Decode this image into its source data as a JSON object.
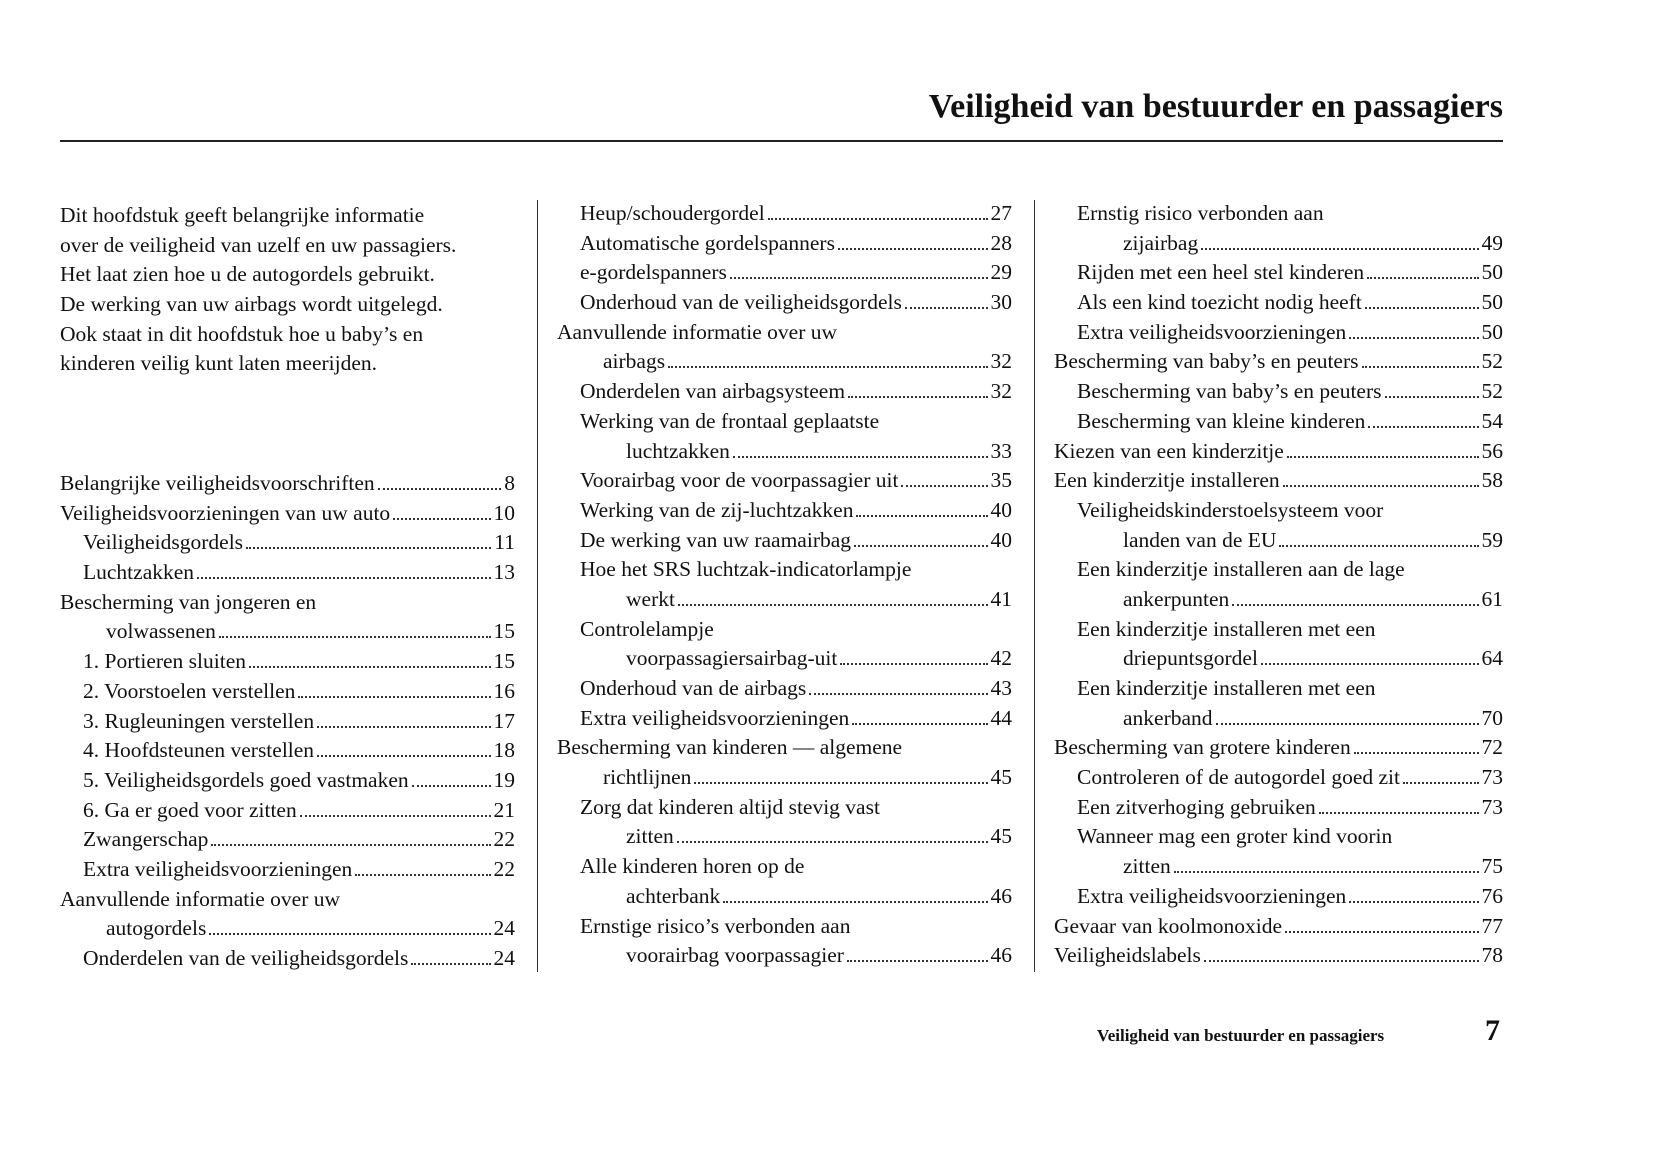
{
  "header": {
    "title": "Veiligheid van bestuurder en passagiers"
  },
  "intro": {
    "lines": [
      "Dit hoofdstuk geeft belangrijke informatie",
      "over de veiligheid van uzelf en uw passagiers.",
      "Het laat zien hoe u de autogordels gebruikt.",
      "De werking van uw airbags wordt uitgelegd.",
      "Ook staat in dit hoofdstuk hoe u baby’s en",
      "kinderen veilig kunt laten meerijden."
    ]
  },
  "columns": [
    {
      "sections": [
        {
          "title": {
            "lines": [
              "Belangrijke veiligheidsvoorschriften"
            ],
            "page": 8
          }
        },
        {
          "title": {
            "lines": [
              "Veiligheidsvoorzieningen van uw auto"
            ],
            "page": 10
          },
          "items": [
            {
              "lines": [
                "Veiligheidsgordels"
              ],
              "page": 11
            },
            {
              "lines": [
                "Luchtzakken"
              ],
              "page": 13
            }
          ]
        },
        {
          "title": {
            "lines": [
              "Bescherming van jongeren en",
              "volwassenen"
            ],
            "page": 15
          },
          "items": [
            {
              "lines": [
                "1. Portieren sluiten"
              ],
              "page": 15
            },
            {
              "lines": [
                "2. Voorstoelen verstellen"
              ],
              "page": 16
            },
            {
              "lines": [
                "3. Rugleuningen verstellen"
              ],
              "page": 17
            },
            {
              "lines": [
                "4. Hoofdsteunen verstellen"
              ],
              "page": 18
            },
            {
              "lines": [
                "5. Veiligheidsgordels goed vastmaken"
              ],
              "page": 19
            },
            {
              "lines": [
                "6. Ga er goed voor zitten"
              ],
              "page": 21
            },
            {
              "lines": [
                "Zwangerschap"
              ],
              "page": 22
            },
            {
              "lines": [
                "Extra veiligheidsvoorzieningen"
              ],
              "page": 22
            }
          ]
        },
        {
          "title": {
            "lines": [
              "Aanvullende informatie over uw",
              "autogordels"
            ],
            "page": 24
          },
          "items": [
            {
              "lines": [
                "Onderdelen van de veiligheidsgordels"
              ],
              "page": 24
            }
          ]
        }
      ]
    },
    {
      "sections": [
        {
          "items": [
            {
              "lines": [
                "Heup/schoudergordel"
              ],
              "page": 27
            },
            {
              "lines": [
                "Automatische gordelspanners"
              ],
              "page": 28
            },
            {
              "lines": [
                "e-gordelspanners"
              ],
              "page": 29
            },
            {
              "lines": [
                "Onderhoud van de veiligheidsgordels"
              ],
              "page": 30
            }
          ]
        },
        {
          "title": {
            "lines": [
              "Aanvullende informatie over uw",
              "airbags"
            ],
            "page": 32
          },
          "items": [
            {
              "lines": [
                "Onderdelen van airbagsysteem"
              ],
              "page": 32
            },
            {
              "lines": [
                "Werking van de frontaal geplaatste",
                "luchtzakken"
              ],
              "page": 33
            },
            {
              "lines": [
                "Voorairbag voor de voorpassagier uit"
              ],
              "page": 35
            },
            {
              "lines": [
                "Werking van de zij-luchtzakken"
              ],
              "page": 40
            },
            {
              "lines": [
                "De werking van uw raamairbag"
              ],
              "page": 40
            },
            {
              "lines": [
                "Hoe het SRS luchtzak-indicatorlampje",
                "werkt"
              ],
              "page": 41
            },
            {
              "lines": [
                "Controlelampje",
                "voorpassagiersairbag-uit"
              ],
              "page": 42
            },
            {
              "lines": [
                "Onderhoud van de airbags"
              ],
              "page": 43
            },
            {
              "lines": [
                "Extra veiligheidsvoorzieningen"
              ],
              "page": 44
            }
          ]
        },
        {
          "title": {
            "lines": [
              "Bescherming van kinderen — algemene",
              "richtlijnen"
            ],
            "page": 45
          },
          "items": [
            {
              "lines": [
                "Zorg dat kinderen altijd stevig vast",
                "zitten"
              ],
              "page": 45
            },
            {
              "lines": [
                "Alle kinderen horen op de",
                "achterbank"
              ],
              "page": 46
            },
            {
              "lines": [
                "Ernstige risico’s verbonden aan",
                "voorairbag voorpassagier"
              ],
              "page": 46
            }
          ]
        }
      ]
    },
    {
      "sections": [
        {
          "items": [
            {
              "lines": [
                "Ernstig risico verbonden aan",
                "zijairbag"
              ],
              "page": 49
            },
            {
              "lines": [
                "Rijden met een heel stel kinderen"
              ],
              "page": 50
            },
            {
              "lines": [
                "Als een kind toezicht nodig heeft"
              ],
              "page": 50
            },
            {
              "lines": [
                "Extra veiligheidsvoorzieningen"
              ],
              "page": 50
            }
          ]
        },
        {
          "title": {
            "lines": [
              "Bescherming van baby’s en peuters"
            ],
            "page": 52
          },
          "items": [
            {
              "lines": [
                "Bescherming van baby’s en peuters"
              ],
              "page": 52
            },
            {
              "lines": [
                "Bescherming van kleine kinderen"
              ],
              "page": 54
            }
          ]
        },
        {
          "title": {
            "lines": [
              "Kiezen van een kinderzitje"
            ],
            "page": 56
          }
        },
        {
          "title": {
            "lines": [
              "Een kinderzitje installeren"
            ],
            "page": 58
          },
          "items": [
            {
              "lines": [
                "Veiligheidskinderstoelsysteem voor",
                "landen van de EU"
              ],
              "page": 59
            },
            {
              "lines": [
                "Een kinderzitje installeren aan de lage",
                "ankerpunten"
              ],
              "page": 61
            },
            {
              "lines": [
                "Een kinderzitje installeren met een",
                "driepuntsgordel"
              ],
              "page": 64
            },
            {
              "lines": [
                "Een kinderzitje installeren met een",
                "ankerband"
              ],
              "page": 70
            }
          ]
        },
        {
          "title": {
            "lines": [
              "Bescherming van grotere kinderen"
            ],
            "page": 72
          },
          "items": [
            {
              "lines": [
                "Controleren of de autogordel goed zit"
              ],
              "page": 73
            },
            {
              "lines": [
                "Een zitverhoging gebruiken"
              ],
              "page": 73
            },
            {
              "lines": [
                "Wanneer mag een groter kind voorin",
                "zitten"
              ],
              "page": 75
            },
            {
              "lines": [
                "Extra veiligheidsvoorzieningen"
              ],
              "page": 76
            }
          ]
        },
        {
          "title": {
            "lines": [
              "Gevaar van koolmonoxide"
            ],
            "page": 77
          }
        },
        {
          "title": {
            "lines": [
              "Veiligheidslabels"
            ],
            "page": 78
          }
        }
      ]
    }
  ],
  "footer": {
    "section": "Veiligheid van bestuurder en passagiers",
    "page": 7
  }
}
